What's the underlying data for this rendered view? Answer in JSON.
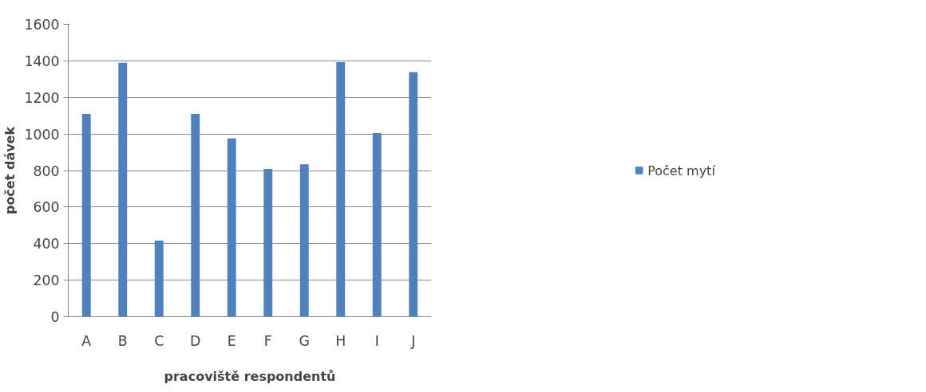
{
  "chart_data": {
    "type": "bar",
    "xlabel": "pracoviště respondentů",
    "ylabel": "počet dávek",
    "categories": [
      "A",
      "B",
      "C",
      "D",
      "E",
      "F",
      "G",
      "H",
      "I",
      "J"
    ],
    "series": [
      {
        "name": "Počet mytí",
        "color": "#4f81bd",
        "values": [
          1110,
          1390,
          416,
          1110,
          976,
          809,
          834,
          1393,
          1005,
          1338
        ]
      }
    ],
    "ylim": [
      0,
      1600
    ],
    "yticks": [
      0,
      200,
      400,
      600,
      800,
      1000,
      1200,
      1400,
      1600
    ],
    "grid": "y",
    "legend": "right"
  }
}
